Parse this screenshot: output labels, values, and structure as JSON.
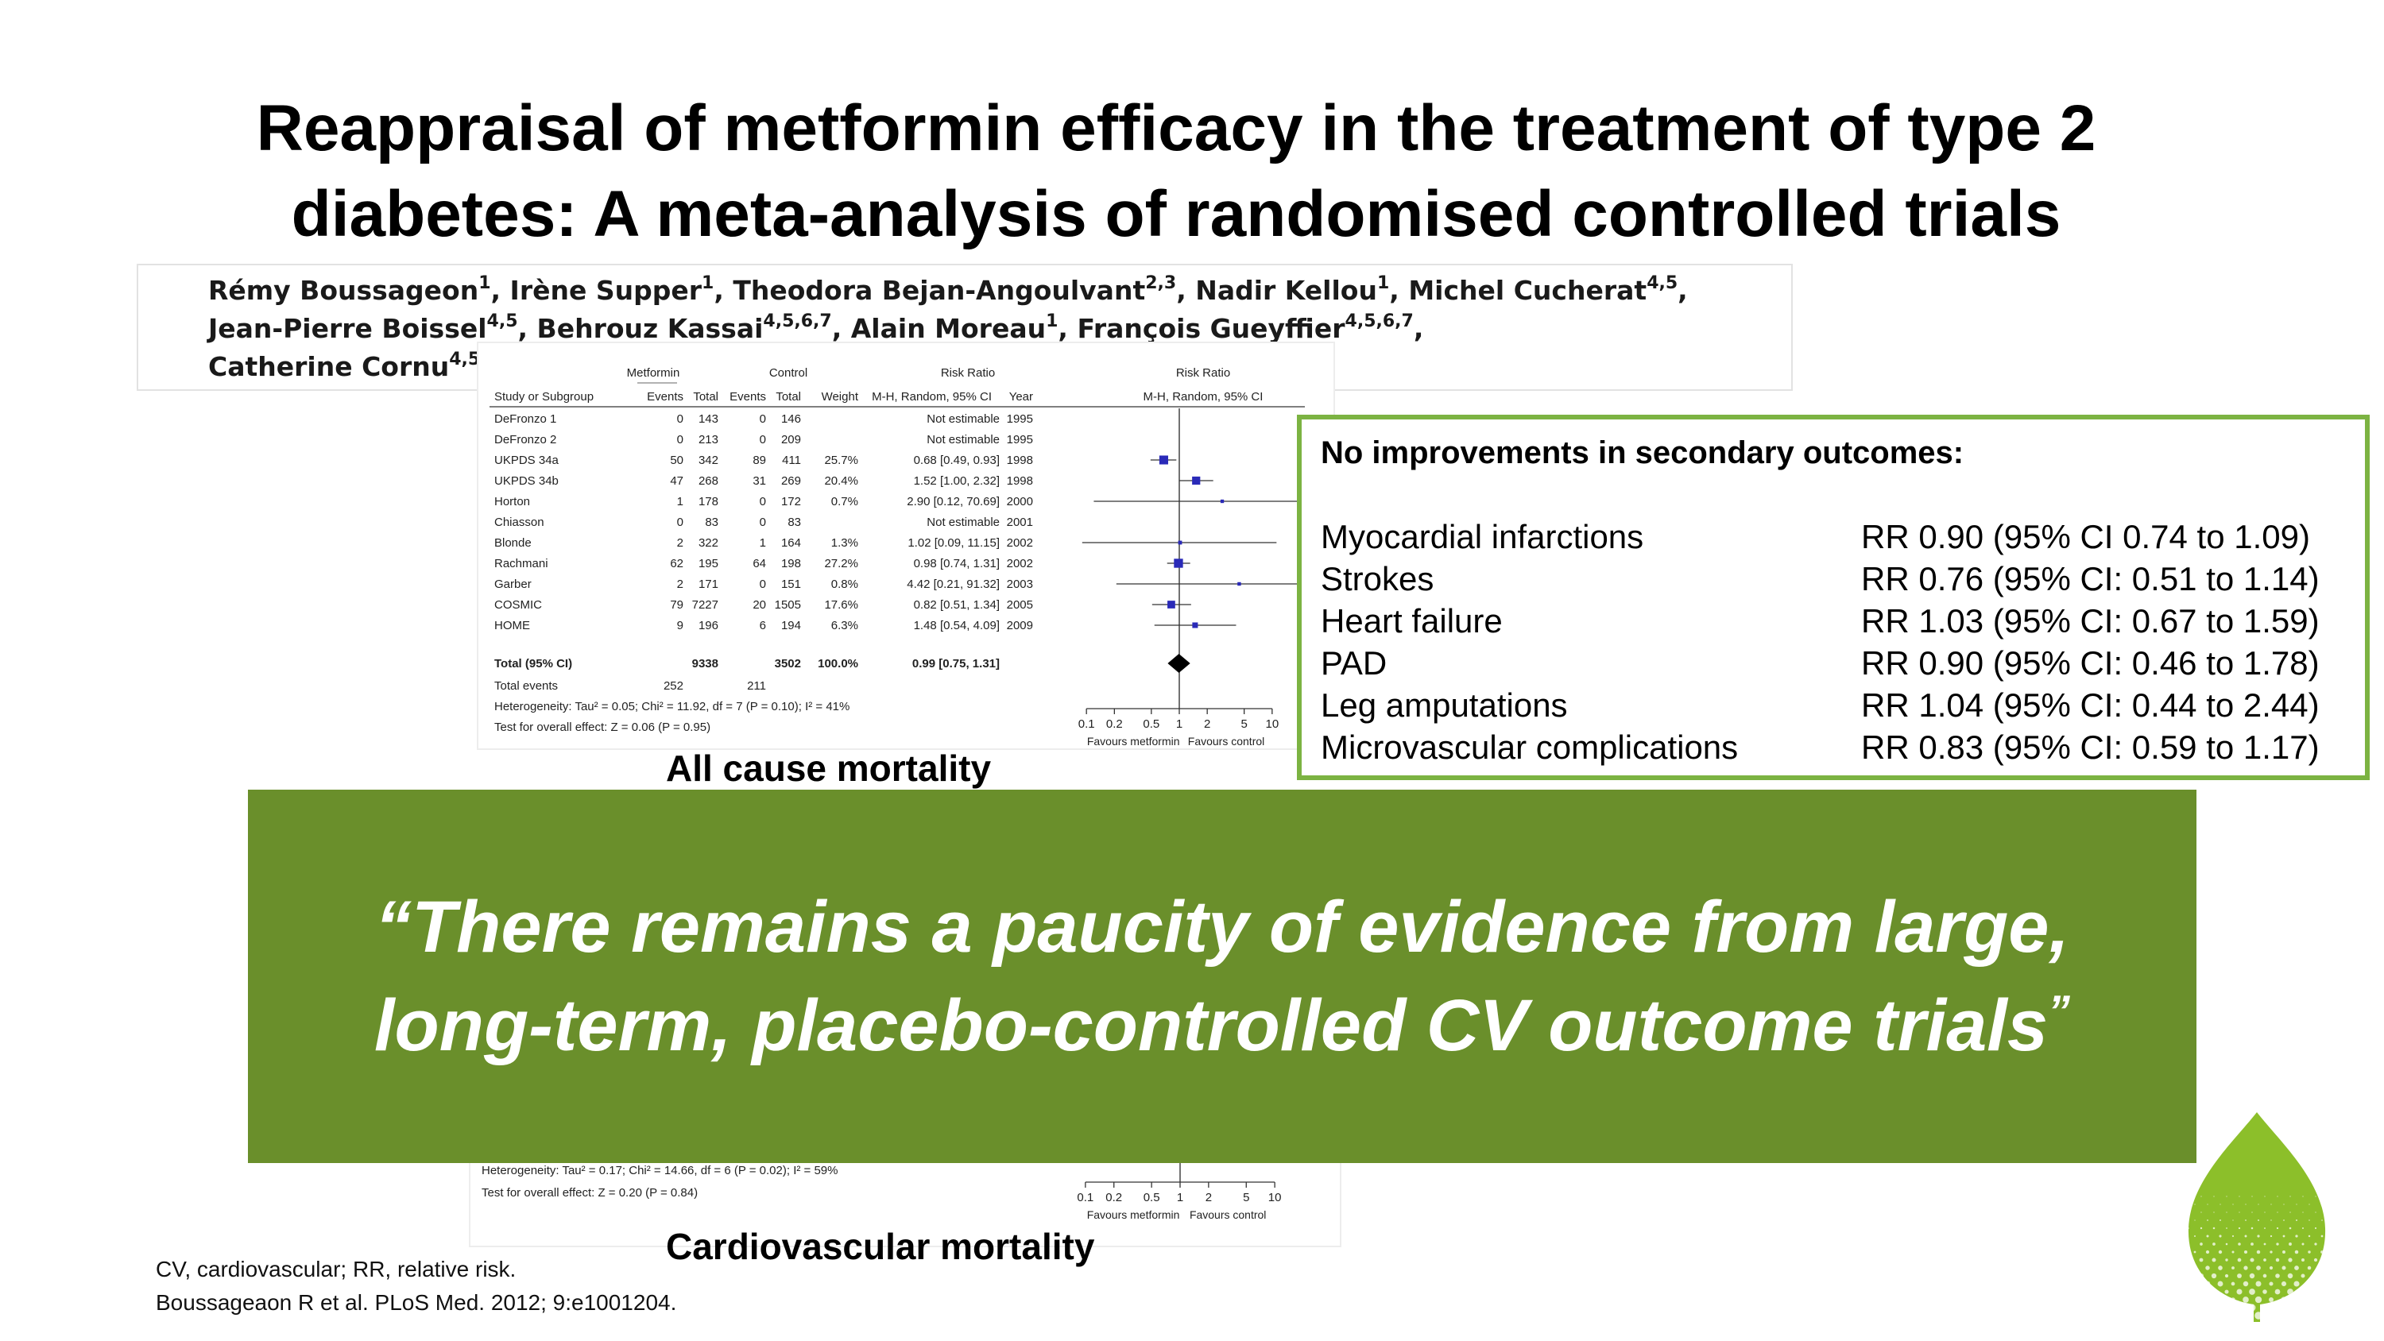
{
  "title": {
    "line1": "Reappraisal of metformin efficacy in the treatment of type 2",
    "line2": "diabetes: A meta-analysis of randomised controlled trials"
  },
  "authors": {
    "line1": [
      {
        "name": "Rémy Boussageon",
        "sup": "1"
      },
      {
        "name": ", Irène Supper",
        "sup": "1"
      },
      {
        "name": ", Theodora Bejan-Angoulvant",
        "sup": "2,3"
      },
      {
        "name": ", Nadir Kellou",
        "sup": "1"
      },
      {
        "name": ", Michel Cucherat",
        "sup": "4,5"
      },
      {
        "name": ",",
        "sup": ""
      }
    ],
    "line2": [
      {
        "name": "Jean-Pierre Boissel",
        "sup": "4,5"
      },
      {
        "name": ", Behrouz Kassai",
        "sup": "4,5,6,7"
      },
      {
        "name": ", Alain Moreau",
        "sup": "1"
      },
      {
        "name": ", François Gueyffier",
        "sup": "4,5,6,7"
      },
      {
        "name": ",",
        "sup": ""
      }
    ],
    "line3": [
      {
        "name": "Catherine Cornu",
        "sup": "4,5"
      }
    ]
  },
  "forest_plot": {
    "headers": {
      "group_metformin": "Metformin",
      "group_control": "Control",
      "group_rr": "Risk Ratio",
      "group_rr_plot": "Risk Ratio",
      "study": "Study or Subgroup",
      "events1": "Events",
      "total1": "Total",
      "events2": "Events",
      "total2": "Total",
      "weight": "Weight",
      "method": "M-H, Random, 95% CI",
      "year": "Year",
      "method_plot": "M-H, Random, 95% CI"
    },
    "rows": [
      {
        "study": "DeFronzo 1",
        "e1": "0",
        "t1": "143",
        "e2": "0",
        "t2": "146",
        "w": "",
        "ci": "Not estimable",
        "year": "1995",
        "rr": null,
        "lo": null,
        "hi": null,
        "weight": 0
      },
      {
        "study": "DeFronzo 2",
        "e1": "0",
        "t1": "213",
        "e2": "0",
        "t2": "209",
        "w": "",
        "ci": "Not estimable",
        "year": "1995",
        "rr": null,
        "lo": null,
        "hi": null,
        "weight": 0
      },
      {
        "study": "UKPDS 34a",
        "e1": "50",
        "t1": "342",
        "e2": "89",
        "t2": "411",
        "w": "25.7%",
        "ci": "0.68 [0.49, 0.93]",
        "year": "1998",
        "rr": 0.68,
        "lo": 0.49,
        "hi": 0.93,
        "weight": 25.7
      },
      {
        "study": "UKPDS 34b",
        "e1": "47",
        "t1": "268",
        "e2": "31",
        "t2": "269",
        "w": "20.4%",
        "ci": "1.52 [1.00, 2.32]",
        "year": "1998",
        "rr": 1.52,
        "lo": 1.0,
        "hi": 2.32,
        "weight": 20.4
      },
      {
        "study": "Horton",
        "e1": "1",
        "t1": "178",
        "e2": "0",
        "t2": "172",
        "w": "0.7%",
        "ci": "2.90 [0.12, 70.69]",
        "year": "2000",
        "rr": 2.9,
        "lo": 0.12,
        "hi": 70.69,
        "weight": 0.7
      },
      {
        "study": "Chiasson",
        "e1": "0",
        "t1": "83",
        "e2": "0",
        "t2": "83",
        "w": "",
        "ci": "Not estimable",
        "year": "2001",
        "rr": null,
        "lo": null,
        "hi": null,
        "weight": 0
      },
      {
        "study": "Blonde",
        "e1": "2",
        "t1": "322",
        "e2": "1",
        "t2": "164",
        "w": "1.3%",
        "ci": "1.02 [0.09, 11.15]",
        "year": "2002",
        "rr": 1.02,
        "lo": 0.09,
        "hi": 11.15,
        "weight": 1.3
      },
      {
        "study": "Rachmani",
        "e1": "62",
        "t1": "195",
        "e2": "64",
        "t2": "198",
        "w": "27.2%",
        "ci": "0.98 [0.74, 1.31]",
        "year": "2002",
        "rr": 0.98,
        "lo": 0.74,
        "hi": 1.31,
        "weight": 27.2
      },
      {
        "study": "Garber",
        "e1": "2",
        "t1": "171",
        "e2": "0",
        "t2": "151",
        "w": "0.8%",
        "ci": "4.42 [0.21, 91.32]",
        "year": "2003",
        "rr": 4.42,
        "lo": 0.21,
        "hi": 91.32,
        "weight": 0.8
      },
      {
        "study": "COSMIC",
        "e1": "79",
        "t1": "7227",
        "e2": "20",
        "t2": "1505",
        "w": "17.6%",
        "ci": "0.82 [0.51, 1.34]",
        "year": "2005",
        "rr": 0.82,
        "lo": 0.51,
        "hi": 1.34,
        "weight": 17.6
      },
      {
        "study": "HOME",
        "e1": "9",
        "t1": "196",
        "e2": "6",
        "t2": "194",
        "w": "6.3%",
        "ci": "1.48 [0.54, 4.09]",
        "year": "2009",
        "rr": 1.48,
        "lo": 0.54,
        "hi": 4.09,
        "weight": 6.3
      }
    ],
    "total": {
      "label": "Total (95% CI)",
      "t1": "9338",
      "t2": "3502",
      "w": "100.0%",
      "ci": "0.99 [0.75, 1.31]",
      "rr": 0.99,
      "lo": 0.75,
      "hi": 1.31
    },
    "total_events": {
      "label": "Total events",
      "e1": "252",
      "e2": "211"
    },
    "heterogeneity": "Heterogeneity: Tau² = 0.05; Chi² = 11.92, df = 7 (P = 0.10); I² = 41%",
    "overall_effect": "Test for overall effect: Z = 0.06 (P = 0.95)",
    "axis_ticks": [
      "0.1",
      "0.2",
      "0.5",
      "1",
      "2",
      "5",
      "10"
    ],
    "favours_left": "Favours metformin",
    "favours_right": "Favours control",
    "caption": "All cause mortality"
  },
  "forest_plot_2": {
    "heterogeneity": "Heterogeneity: Tau² = 0.17; Chi² = 14.66, df = 6 (P = 0.02); I² = 59%",
    "overall_effect": "Test for overall effect: Z = 0.20 (P = 0.84)",
    "axis_ticks": [
      "0.1",
      "0.2",
      "0.5",
      "1",
      "2",
      "5",
      "10"
    ],
    "favours_left": "Favours metformin",
    "favours_right": "Favours control",
    "caption": "Cardiovascular mortality"
  },
  "secondary": {
    "heading": "No improvements in secondary outcomes:",
    "rows": [
      {
        "label": "Myocardial infarctions",
        "value": "RR 0.90 (95% CI 0.74 to 1.09)"
      },
      {
        "label": "Strokes",
        "value": "RR 0.76 (95% CI: 0.51 to 1.14)"
      },
      {
        "label": "Heart failure",
        "value": "RR 1.03 (95% CI: 0.67 to 1.59)"
      },
      {
        "label": "PAD",
        "value": "RR 0.90 (95% CI: 0.46 to 1.78)"
      },
      {
        "label": "Leg amputations",
        "value": "RR 1.04 (95% CI: 0.44 to 2.44)"
      },
      {
        "label": "Microvascular complications",
        "value": "RR 0.83 (95% CI: 0.59 to 1.17)"
      }
    ]
  },
  "quote": {
    "line1": "“There remains a paucity of evidence from large,",
    "line2": "long-term, placebo-controlled CV outcome trials",
    "close_mark": "”"
  },
  "footnotes": {
    "abbrev": "CV, cardiovascular; RR, relative risk.",
    "reference": "Boussageaon R et al. PLoS Med. 2012; 9:e1001204."
  },
  "colors": {
    "banner_green": "#6a8f2b",
    "box_border_green": "#7cb342",
    "marker_blue": "#2a2ab8",
    "leaf_green": "#8cbf2a"
  }
}
